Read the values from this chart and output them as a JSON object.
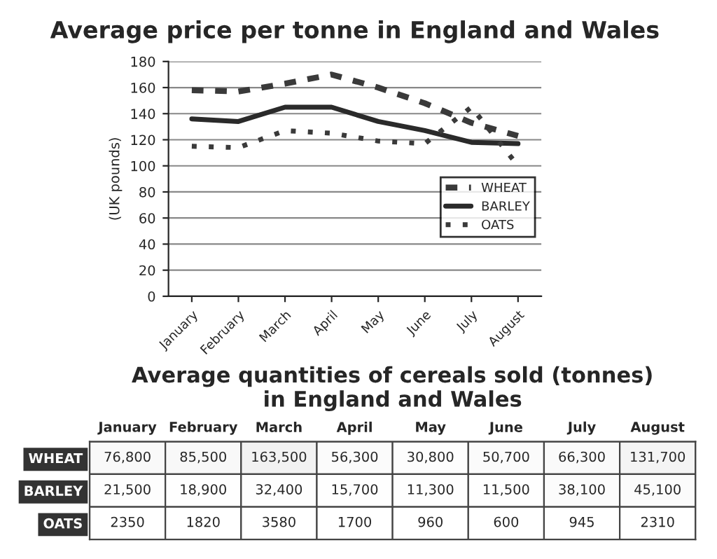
{
  "chart_data": [
    {
      "type": "line",
      "title": "Average price per tonne in England and Wales",
      "ylabel": "(UK pounds)",
      "categories": [
        "January",
        "February",
        "March",
        "April",
        "May",
        "June",
        "July",
        "August"
      ],
      "series": [
        {
          "name": "WHEAT",
          "color": "#3a3a3a",
          "line_style": "dashed",
          "values": [
            158,
            157,
            163,
            170,
            160,
            148,
            133,
            123
          ]
        },
        {
          "name": "BARLEY",
          "color": "#2a2a2a",
          "line_style": "solid",
          "values": [
            136,
            134,
            145,
            145,
            134,
            127,
            118,
            117
          ]
        },
        {
          "name": "OATS",
          "color": "#3a3a3a",
          "line_style": "dotted",
          "values": [
            115,
            114,
            127,
            125,
            119,
            117,
            145,
            100
          ]
        }
      ],
      "ylim": [
        0,
        180
      ],
      "yticks": [
        0,
        20,
        40,
        60,
        80,
        100,
        120,
        140,
        160,
        180
      ],
      "grid": "y",
      "legend": "right"
    },
    {
      "type": "heatmap",
      "title": "Average quantities of cereals sold (tonnes)\nin England and Wales",
      "categories": [
        "January",
        "February",
        "March",
        "April",
        "May",
        "June",
        "July",
        "August"
      ],
      "y_categories": [
        "WHEAT",
        "BARLEY",
        "OATS"
      ],
      "cells": [
        [
          76800,
          85500,
          163500,
          56300,
          30800,
          50700,
          66300,
          131700
        ],
        [
          21500,
          18900,
          32400,
          15700,
          11300,
          11500,
          38100,
          45100
        ],
        [
          2350,
          1820,
          3580,
          1700,
          960,
          600,
          945,
          2310
        ]
      ],
      "cell_labels": [
        [
          "76,800",
          "85,500",
          "163,500",
          "56,300",
          "30,800",
          "50,700",
          "66,300",
          "131,700"
        ],
        [
          "21,500",
          "18,900",
          "32,400",
          "15,700",
          "11,300",
          "11,500",
          "38,100",
          "45,100"
        ],
        [
          "2350",
          "1820",
          "3580",
          "1700",
          "960",
          "600",
          "945",
          "2310"
        ]
      ]
    }
  ]
}
